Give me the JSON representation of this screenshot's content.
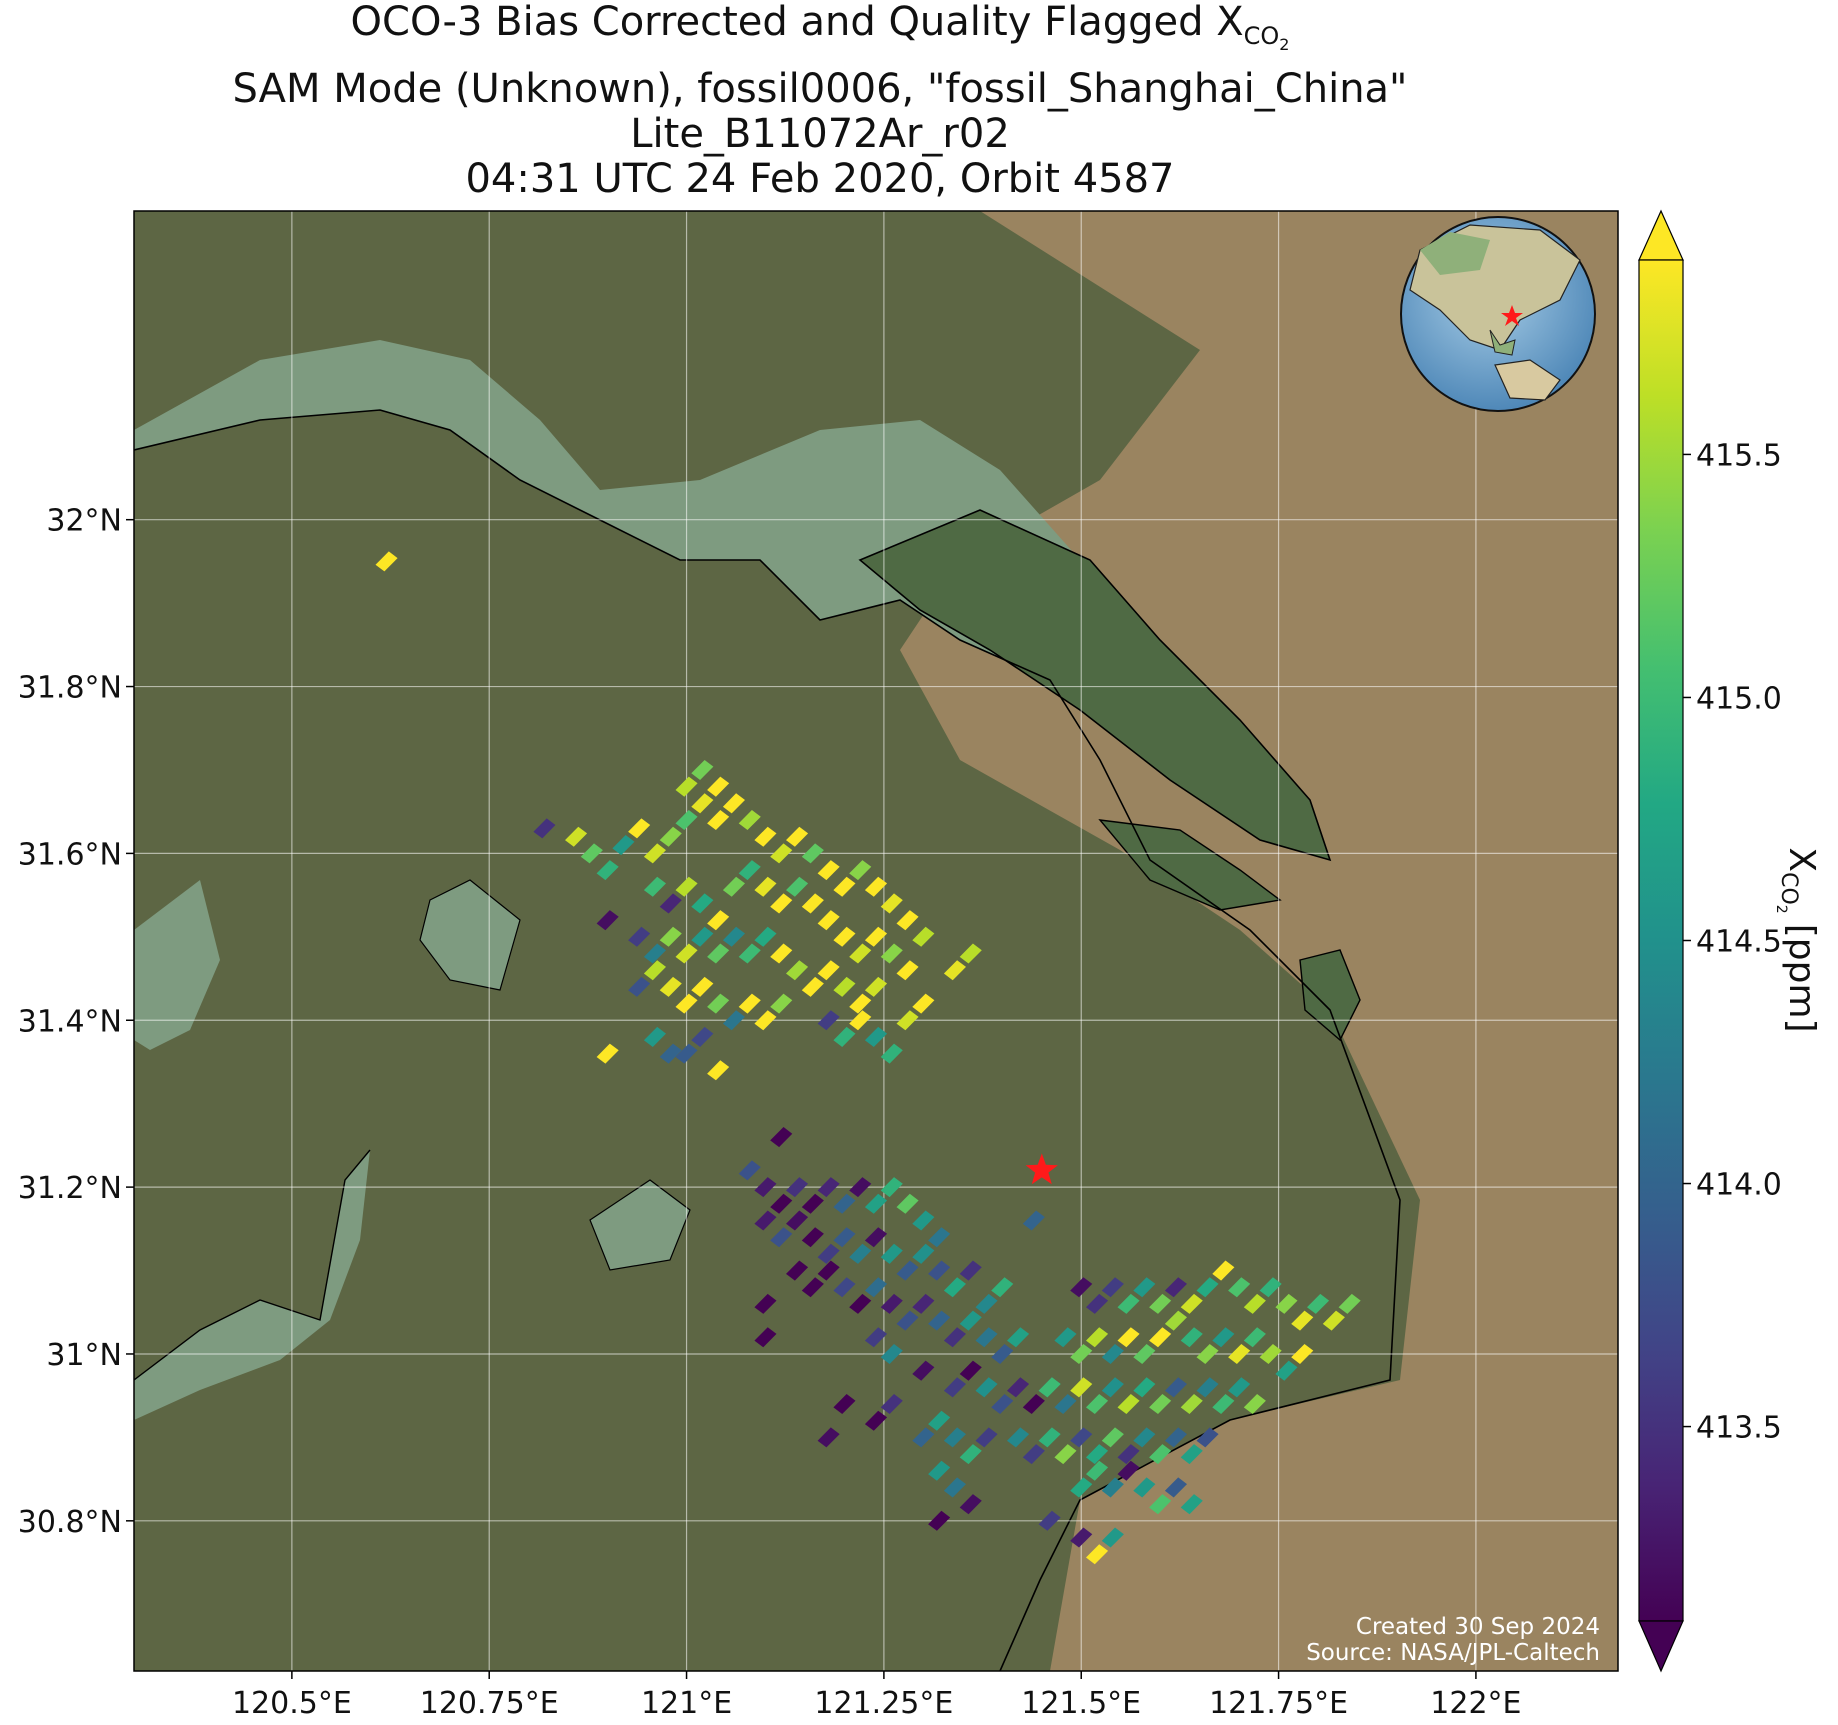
{
  "title": {
    "line1": "OCO-3 Bias Corrected and Quality Flagged X",
    "line1_sub": "CO",
    "line1_sub2": "2",
    "line2": "SAM Mode (Unknown), fossil0006, \"fossil_Shanghai_China\"",
    "line3": "Lite_B11072Ar_r02",
    "line4": "04:31 UTC 24 Feb 2020, Orbit 4587"
  },
  "map": {
    "lon_range": [
      120.3,
      122.18
    ],
    "lat_range": [
      30.62,
      32.37
    ],
    "target_lon": 121.45,
    "target_lat": 31.22,
    "lon_ticks": [
      {
        "value": 120.5,
        "label": "120.5°E"
      },
      {
        "value": 120.75,
        "label": "120.75°E"
      },
      {
        "value": 121.0,
        "label": "121°E"
      },
      {
        "value": 121.25,
        "label": "121.25°E"
      },
      {
        "value": 121.5,
        "label": "121.5°E"
      },
      {
        "value": 121.75,
        "label": "121.75°E"
      },
      {
        "value": 122.0,
        "label": "122°E"
      }
    ],
    "lat_ticks": [
      {
        "value": 30.8,
        "label": "30.8°N"
      },
      {
        "value": 31.0,
        "label": "31°N"
      },
      {
        "value": 31.2,
        "label": "31.2°N"
      },
      {
        "value": 31.4,
        "label": "31.4°N"
      },
      {
        "value": 31.6,
        "label": "31.6°N"
      },
      {
        "value": 31.8,
        "label": "31.8°N"
      },
      {
        "value": 32.0,
        "label": "32°N"
      }
    ],
    "colors": {
      "land": "#5d6644",
      "water": "#7e9b80",
      "sea": "#9a8460",
      "target_star": "#ff1a1a",
      "coast": "#000000",
      "grid": "#ffffff"
    }
  },
  "colorbar": {
    "label": "X",
    "label_sub": "CO",
    "label_sub2": "2",
    "label_unit": "[ppm]",
    "min": 413.1,
    "max": 415.9,
    "ticks": [
      {
        "value": 413.5,
        "label": "413.5"
      },
      {
        "value": 414.0,
        "label": "414.0"
      },
      {
        "value": 414.5,
        "label": "414.5"
      },
      {
        "value": 415.0,
        "label": "415.0"
      },
      {
        "value": 415.5,
        "label": "415.5"
      }
    ],
    "colormap": "viridis"
  },
  "credit": {
    "line1": "Created 30 Sep 2024",
    "line2": "Source: NASA/JPL-Caltech"
  },
  "chart_data": {
    "type": "heatmap",
    "title": "OCO-3 Bias Corrected and Quality Flagged XCO2",
    "xlabel": "",
    "ylabel": "",
    "colorbar_label": "XCO2 [ppm]",
    "xlim": [
      120.3,
      122.18
    ],
    "ylim": [
      30.62,
      32.37
    ],
    "cell_size": {
      "dlon": 0.028,
      "dlat": 0.02
    },
    "points": [
      [
        120.62,
        31.95,
        415.9
      ],
      [
        120.82,
        31.63,
        413.5
      ],
      [
        120.86,
        31.62,
        415.7
      ],
      [
        120.88,
        31.6,
        415.2
      ],
      [
        120.9,
        31.58,
        414.9
      ],
      [
        120.92,
        31.61,
        414.6
      ],
      [
        120.94,
        31.63,
        415.9
      ],
      [
        120.96,
        31.6,
        415.7
      ],
      [
        120.98,
        31.62,
        415.4
      ],
      [
        121.0,
        31.64,
        415.1
      ],
      [
        121.02,
        31.66,
        415.8
      ],
      [
        121.04,
        31.64,
        416.0
      ],
      [
        121.0,
        31.68,
        415.6
      ],
      [
        121.02,
        31.7,
        415.3
      ],
      [
        121.04,
        31.68,
        415.9
      ],
      [
        121.06,
        31.66,
        416.0
      ],
      [
        121.08,
        31.64,
        415.5
      ],
      [
        121.1,
        31.62,
        416.0
      ],
      [
        121.12,
        31.6,
        415.7
      ],
      [
        121.14,
        31.62,
        416.0
      ],
      [
        121.16,
        31.6,
        415.2
      ],
      [
        121.18,
        31.58,
        416.0
      ],
      [
        121.2,
        31.56,
        415.9
      ],
      [
        121.22,
        31.58,
        415.4
      ],
      [
        121.24,
        31.56,
        416.0
      ],
      [
        121.26,
        31.54,
        415.8
      ],
      [
        121.28,
        31.52,
        416.0
      ],
      [
        121.3,
        31.5,
        415.6
      ],
      [
        120.96,
        31.56,
        415.0
      ],
      [
        120.98,
        31.54,
        413.4
      ],
      [
        121.0,
        31.56,
        415.6
      ],
      [
        121.02,
        31.54,
        414.8
      ],
      [
        121.04,
        31.52,
        415.9
      ],
      [
        121.06,
        31.56,
        415.3
      ],
      [
        121.08,
        31.58,
        414.9
      ],
      [
        121.1,
        31.56,
        415.8
      ],
      [
        121.12,
        31.54,
        416.0
      ],
      [
        121.14,
        31.56,
        415.1
      ],
      [
        121.16,
        31.54,
        416.0
      ],
      [
        121.18,
        31.52,
        415.9
      ],
      [
        121.2,
        31.5,
        416.0
      ],
      [
        121.22,
        31.48,
        415.7
      ],
      [
        121.24,
        31.5,
        416.0
      ],
      [
        121.26,
        31.48,
        415.4
      ],
      [
        121.28,
        31.46,
        416.0
      ],
      [
        120.9,
        31.52,
        413.2
      ],
      [
        120.94,
        31.5,
        413.6
      ],
      [
        120.96,
        31.48,
        414.3
      ],
      [
        120.98,
        31.5,
        415.4
      ],
      [
        121.0,
        31.48,
        415.7
      ],
      [
        121.02,
        31.5,
        414.6
      ],
      [
        121.04,
        31.48,
        415.2
      ],
      [
        121.06,
        31.5,
        414.4
      ],
      [
        121.08,
        31.48,
        415.0
      ],
      [
        121.1,
        31.5,
        414.8
      ],
      [
        121.12,
        31.48,
        416.0
      ],
      [
        121.14,
        31.46,
        415.5
      ],
      [
        121.16,
        31.44,
        415.9
      ],
      [
        121.18,
        31.46,
        416.0
      ],
      [
        121.2,
        31.44,
        415.6
      ],
      [
        121.22,
        31.42,
        416.0
      ],
      [
        121.24,
        31.44,
        415.7
      ],
      [
        120.94,
        31.44,
        413.8
      ],
      [
        120.96,
        31.46,
        415.6
      ],
      [
        120.98,
        31.44,
        415.8
      ],
      [
        121.0,
        31.42,
        415.9
      ],
      [
        121.02,
        31.44,
        416.0
      ],
      [
        121.04,
        31.42,
        415.3
      ],
      [
        121.06,
        31.4,
        414.2
      ],
      [
        121.08,
        31.42,
        416.0
      ],
      [
        121.1,
        31.4,
        416.0
      ],
      [
        121.12,
        31.42,
        415.4
      ],
      [
        121.18,
        31.4,
        413.6
      ],
      [
        121.2,
        31.38,
        414.9
      ],
      [
        121.22,
        31.4,
        415.9
      ],
      [
        121.24,
        31.38,
        414.6
      ],
      [
        121.26,
        31.36,
        414.9
      ],
      [
        121.28,
        31.4,
        415.7
      ],
      [
        121.3,
        31.42,
        416.0
      ],
      [
        121.34,
        31.46,
        415.8
      ],
      [
        121.36,
        31.48,
        415.6
      ],
      [
        120.96,
        31.38,
        414.6
      ],
      [
        120.98,
        31.36,
        414.0
      ],
      [
        121.0,
        31.36,
        413.9
      ],
      [
        121.02,
        31.38,
        413.7
      ],
      [
        120.9,
        31.36,
        415.9
      ],
      [
        121.04,
        31.34,
        415.9
      ],
      [
        121.12,
        31.26,
        413.0
      ],
      [
        121.08,
        31.22,
        413.8
      ],
      [
        121.1,
        31.2,
        413.3
      ],
      [
        121.12,
        31.18,
        413.1
      ],
      [
        121.14,
        31.2,
        413.5
      ],
      [
        121.16,
        31.18,
        413.0
      ],
      [
        121.18,
        31.2,
        413.4
      ],
      [
        121.2,
        31.18,
        414.0
      ],
      [
        121.22,
        31.2,
        413.2
      ],
      [
        121.24,
        31.18,
        414.7
      ],
      [
        121.26,
        31.2,
        414.9
      ],
      [
        121.28,
        31.18,
        415.2
      ],
      [
        121.3,
        31.16,
        414.6
      ],
      [
        121.32,
        31.14,
        414.2
      ],
      [
        121.1,
        31.16,
        413.3
      ],
      [
        121.12,
        31.14,
        413.8
      ],
      [
        121.14,
        31.16,
        413.2
      ],
      [
        121.16,
        31.14,
        413.0
      ],
      [
        121.18,
        31.12,
        413.6
      ],
      [
        121.2,
        31.14,
        413.9
      ],
      [
        121.22,
        31.12,
        414.3
      ],
      [
        121.24,
        31.14,
        413.2
      ],
      [
        121.26,
        31.12,
        414.6
      ],
      [
        121.28,
        31.1,
        413.9
      ],
      [
        121.3,
        31.12,
        414.5
      ],
      [
        121.32,
        31.1,
        413.8
      ],
      [
        121.34,
        31.08,
        414.8
      ],
      [
        121.36,
        31.1,
        413.5
      ],
      [
        121.38,
        31.06,
        414.4
      ],
      [
        121.4,
        31.08,
        414.9
      ],
      [
        121.14,
        31.1,
        413.0
      ],
      [
        121.16,
        31.08,
        413.1
      ],
      [
        121.18,
        31.1,
        413.0
      ],
      [
        121.2,
        31.08,
        413.7
      ],
      [
        121.22,
        31.06,
        413.1
      ],
      [
        121.24,
        31.08,
        414.1
      ],
      [
        121.26,
        31.06,
        413.3
      ],
      [
        121.28,
        31.04,
        413.8
      ],
      [
        121.3,
        31.06,
        413.4
      ],
      [
        121.32,
        31.04,
        414.0
      ],
      [
        121.34,
        31.02,
        413.5
      ],
      [
        121.36,
        31.04,
        414.6
      ],
      [
        121.38,
        31.02,
        414.2
      ],
      [
        121.4,
        31.0,
        413.9
      ],
      [
        121.42,
        31.02,
        414.7
      ],
      [
        121.44,
        31.16,
        414.0
      ],
      [
        121.1,
        31.06,
        413.0
      ],
      [
        121.1,
        31.02,
        413.1
      ],
      [
        121.24,
        31.02,
        413.6
      ],
      [
        121.26,
        31.0,
        414.4
      ],
      [
        121.3,
        30.98,
        413.2
      ],
      [
        121.34,
        30.96,
        413.6
      ],
      [
        121.36,
        30.98,
        413.0
      ],
      [
        121.38,
        30.96,
        414.5
      ],
      [
        121.4,
        30.94,
        413.8
      ],
      [
        121.42,
        30.96,
        413.4
      ],
      [
        121.44,
        30.94,
        413.1
      ],
      [
        121.46,
        30.96,
        414.4
      ],
      [
        121.2,
        30.94,
        413.0
      ],
      [
        121.24,
        30.92,
        413.1
      ],
      [
        121.26,
        30.94,
        413.5
      ],
      [
        121.18,
        30.9,
        413.2
      ],
      [
        121.3,
        30.9,
        414.0
      ],
      [
        121.32,
        30.92,
        414.7
      ],
      [
        121.34,
        30.9,
        414.3
      ],
      [
        121.36,
        30.88,
        414.9
      ],
      [
        121.38,
        30.9,
        413.6
      ],
      [
        121.32,
        30.86,
        414.6
      ],
      [
        121.34,
        30.84,
        414.2
      ],
      [
        121.36,
        30.82,
        413.2
      ],
      [
        121.32,
        30.8,
        413.0
      ],
      [
        121.5,
        31.08,
        413.2
      ],
      [
        121.52,
        31.06,
        413.5
      ],
      [
        121.54,
        31.08,
        413.6
      ],
      [
        121.56,
        31.06,
        415.0
      ],
      [
        121.58,
        31.08,
        414.6
      ],
      [
        121.6,
        31.06,
        415.3
      ],
      [
        121.62,
        31.08,
        413.4
      ],
      [
        121.64,
        31.06,
        415.7
      ],
      [
        121.66,
        31.08,
        414.8
      ],
      [
        121.68,
        31.1,
        415.9
      ],
      [
        121.7,
        31.08,
        415.1
      ],
      [
        121.72,
        31.06,
        415.6
      ],
      [
        121.74,
        31.08,
        414.9
      ],
      [
        121.76,
        31.06,
        415.4
      ],
      [
        121.78,
        31.04,
        415.8
      ],
      [
        121.8,
        31.06,
        415.0
      ],
      [
        121.82,
        31.04,
        415.7
      ],
      [
        121.84,
        31.06,
        415.3
      ],
      [
        121.48,
        31.02,
        414.6
      ],
      [
        121.5,
        31.0,
        415.3
      ],
      [
        121.52,
        31.02,
        415.6
      ],
      [
        121.54,
        31.0,
        414.4
      ],
      [
        121.56,
        31.02,
        415.9
      ],
      [
        121.58,
        31.0,
        415.2
      ],
      [
        121.6,
        31.02,
        416.0
      ],
      [
        121.62,
        31.04,
        415.5
      ],
      [
        121.64,
        31.02,
        414.9
      ],
      [
        121.66,
        31.0,
        415.4
      ],
      [
        121.68,
        31.02,
        414.6
      ],
      [
        121.7,
        31.0,
        415.8
      ],
      [
        121.72,
        31.02,
        415.0
      ],
      [
        121.74,
        31.0,
        415.5
      ],
      [
        121.76,
        30.98,
        414.7
      ],
      [
        121.78,
        31.0,
        415.9
      ],
      [
        121.46,
        30.96,
        415.0
      ],
      [
        121.48,
        30.94,
        414.2
      ],
      [
        121.5,
        30.96,
        415.7
      ],
      [
        121.52,
        30.94,
        415.1
      ],
      [
        121.54,
        30.96,
        414.5
      ],
      [
        121.56,
        30.94,
        415.6
      ],
      [
        121.58,
        30.96,
        414.8
      ],
      [
        121.6,
        30.94,
        415.3
      ],
      [
        121.62,
        30.96,
        413.9
      ],
      [
        121.64,
        30.94,
        415.5
      ],
      [
        121.66,
        30.96,
        414.3
      ],
      [
        121.68,
        30.94,
        415.0
      ],
      [
        121.7,
        30.96,
        414.6
      ],
      [
        121.72,
        30.94,
        415.4
      ],
      [
        121.42,
        30.9,
        414.4
      ],
      [
        121.44,
        30.88,
        413.6
      ],
      [
        121.46,
        30.9,
        414.9
      ],
      [
        121.48,
        30.88,
        415.4
      ],
      [
        121.5,
        30.9,
        413.7
      ],
      [
        121.52,
        30.88,
        414.8
      ],
      [
        121.54,
        30.9,
        415.2
      ],
      [
        121.56,
        30.88,
        413.5
      ],
      [
        121.58,
        30.9,
        414.4
      ],
      [
        121.6,
        30.88,
        415.1
      ],
      [
        121.62,
        30.9,
        414.0
      ],
      [
        121.64,
        30.88,
        414.7
      ],
      [
        121.66,
        30.9,
        413.8
      ],
      [
        121.5,
        30.84,
        414.8
      ],
      [
        121.52,
        30.86,
        415.0
      ],
      [
        121.54,
        30.84,
        414.3
      ],
      [
        121.56,
        30.86,
        413.2
      ],
      [
        121.58,
        30.84,
        414.6
      ],
      [
        121.6,
        30.82,
        415.1
      ],
      [
        121.62,
        30.84,
        413.9
      ],
      [
        121.64,
        30.82,
        414.7
      ],
      [
        121.46,
        30.8,
        413.6
      ],
      [
        121.5,
        30.78,
        413.3
      ],
      [
        121.52,
        30.76,
        415.9
      ],
      [
        121.54,
        30.78,
        414.6
      ]
    ]
  }
}
